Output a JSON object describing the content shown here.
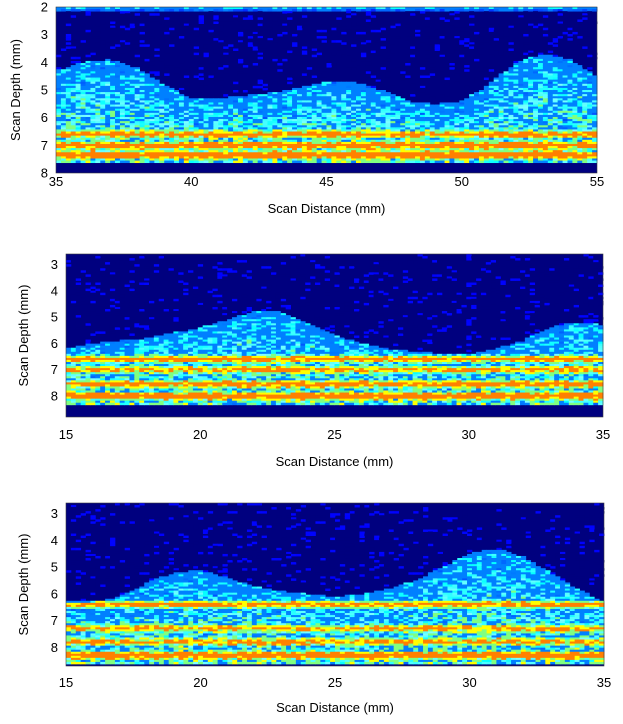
{
  "colormap": {
    "name": "jet",
    "background": "#00007f",
    "stops": [
      "#00007f",
      "#0000ff",
      "#0080ff",
      "#00ffff",
      "#80ff80",
      "#ffff00",
      "#ff8000",
      "#ff0000"
    ]
  },
  "chart_data": [
    {
      "type": "heatmap",
      "xlabel": "Scan Distance (mm)",
      "ylabel": "Scan Depth (mm)",
      "xlim": [
        35,
        55
      ],
      "ylim": [
        8,
        2
      ],
      "xticks": [
        "35",
        "40",
        "45",
        "50",
        "55"
      ],
      "yticks": [
        "2",
        "3",
        "4",
        "5",
        "6",
        "7",
        "8"
      ],
      "surface_top_depth": [
        4.3,
        4.0,
        3.9,
        4.2,
        4.8,
        5.3,
        5.3,
        5.2,
        5.1,
        4.9,
        4.7,
        4.7,
        5.0,
        5.4,
        5.5,
        5.4,
        4.8,
        4.0,
        3.7,
        3.9,
        4.5
      ],
      "bands": [
        {
          "depth": 2.0,
          "intensity": 0.45
        },
        {
          "depth": 6.6,
          "intensity": 0.7
        },
        {
          "depth": 7.0,
          "intensity": 0.8
        },
        {
          "depth": 7.35,
          "intensity": 0.95
        }
      ]
    },
    {
      "type": "heatmap",
      "xlabel": "Scan Distance (mm)",
      "ylabel": "Scan Depth (mm)",
      "xlim": [
        15,
        35
      ],
      "ylim": [
        8.8,
        2.6
      ],
      "xticks": [
        "15",
        "20",
        "25",
        "30",
        "35"
      ],
      "yticks": [
        "3",
        "4",
        "5",
        "6",
        "7",
        "8"
      ],
      "surface_top_depth": [
        6.2,
        6.0,
        5.9,
        5.8,
        5.6,
        5.4,
        5.1,
        4.8,
        4.8,
        5.2,
        5.7,
        6.0,
        6.2,
        6.3,
        6.4,
        6.4,
        6.2,
        5.9,
        5.4,
        5.2,
        5.3
      ],
      "bands": [
        {
          "depth": 6.6,
          "intensity": 0.75
        },
        {
          "depth": 7.0,
          "intensity": 0.65
        },
        {
          "depth": 7.55,
          "intensity": 0.75
        },
        {
          "depth": 8.0,
          "intensity": 0.95
        }
      ]
    },
    {
      "type": "heatmap",
      "xlabel": "Scan Distance (mm)",
      "ylabel": "Scan Depth (mm)",
      "xlim": [
        15,
        35
      ],
      "ylim": [
        8.7,
        2.6
      ],
      "xticks": [
        "15",
        "20",
        "25",
        "30",
        "35"
      ],
      "yticks": [
        "3",
        "4",
        "5",
        "6",
        "7",
        "8"
      ],
      "surface_top_depth": [
        6.4,
        6.3,
        6.1,
        5.6,
        5.2,
        5.1,
        5.4,
        5.7,
        5.9,
        6.0,
        6.1,
        6.0,
        5.8,
        5.5,
        5.0,
        4.5,
        4.3,
        4.6,
        5.2,
        5.8,
        6.3
      ],
      "bands": [
        {
          "depth": 6.4,
          "intensity": 0.75
        },
        {
          "depth": 7.3,
          "intensity": 0.6
        },
        {
          "depth": 7.8,
          "intensity": 0.6
        },
        {
          "depth": 8.3,
          "intensity": 0.9
        }
      ]
    }
  ]
}
